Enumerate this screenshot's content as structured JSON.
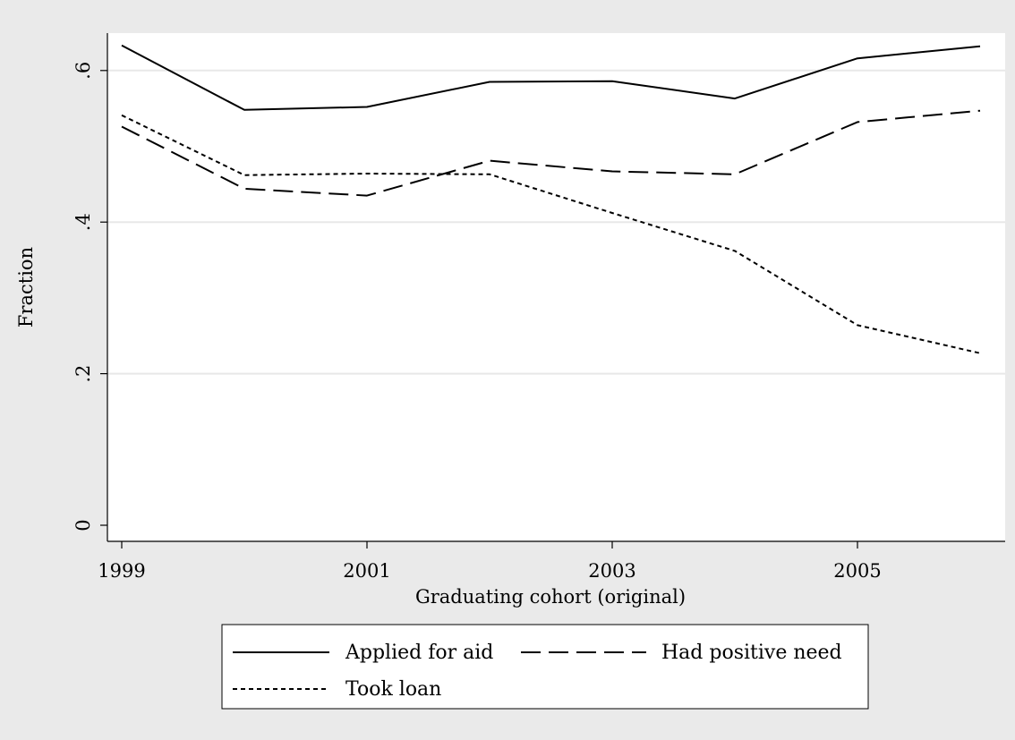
{
  "chart_data": {
    "type": "line",
    "xlabel": "Graduating cohort (original)",
    "ylabel": "Fraction",
    "xlim": [
      1999,
      2006
    ],
    "ylim": [
      0,
      0.65
    ],
    "x_ticks": [
      1999,
      2001,
      2003,
      2005
    ],
    "x_tick_labels": [
      "1999",
      "2001",
      "2003",
      "2005"
    ],
    "y_ticks": [
      0,
      0.2,
      0.4,
      0.6
    ],
    "y_tick_labels": [
      "0",
      ".2",
      ".4",
      ".6"
    ],
    "grid": "horizontal",
    "legend_placement": "bottom",
    "colors": {
      "plot_bg": "#ffffff",
      "outer_bg": "#eaeaea",
      "grid": "#e8e8e8",
      "line": "#000000"
    },
    "x": [
      1999,
      2000,
      2001,
      2002,
      2003,
      2004,
      2005,
      2006
    ],
    "series": [
      {
        "name": "Applied for aid",
        "style": "solid",
        "values": [
          0.633,
          0.548,
          0.552,
          0.585,
          0.586,
          0.563,
          0.616,
          0.632
        ]
      },
      {
        "name": "Had positive need",
        "style": "long-dash",
        "values": [
          0.526,
          0.444,
          0.435,
          0.481,
          0.467,
          0.463,
          0.532,
          0.547
        ]
      },
      {
        "name": "Took loan",
        "style": "short-dash",
        "values": [
          0.541,
          0.462,
          0.464,
          0.463,
          0.412,
          0.362,
          0.264,
          0.227
        ]
      }
    ]
  }
}
